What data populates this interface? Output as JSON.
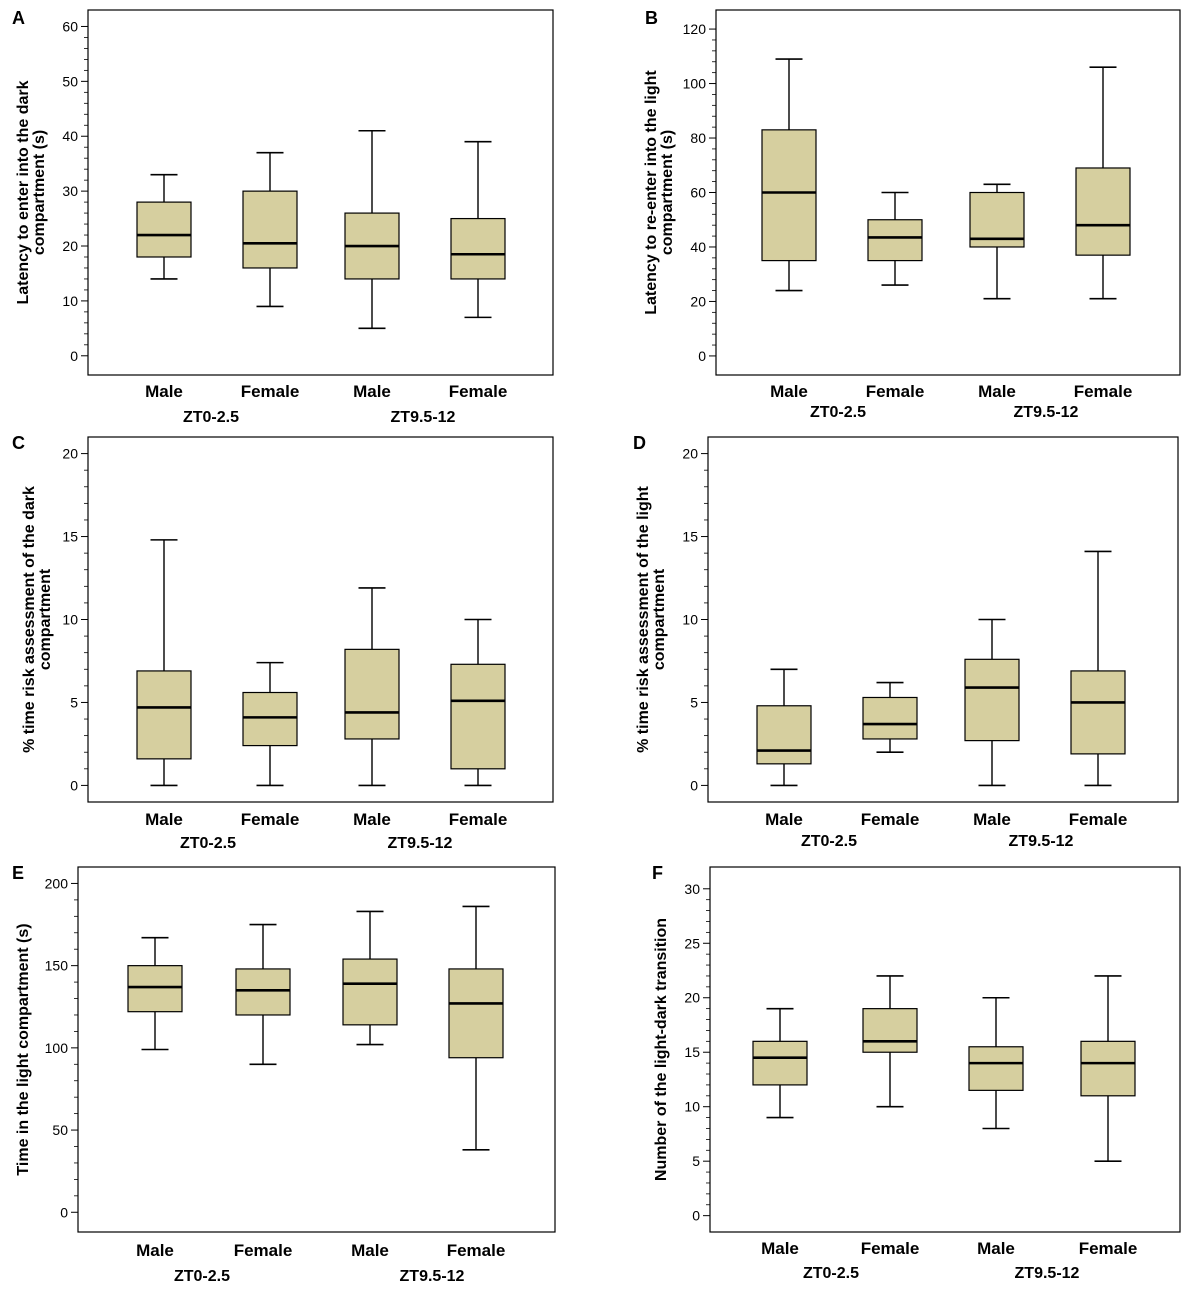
{
  "colors": {
    "box_fill": "#d6cf9f",
    "stroke": "#000000",
    "frame": "#000000",
    "background": "#ffffff"
  },
  "categories": [
    "Male",
    "Female",
    "Male",
    "Female"
  ],
  "groups": [
    "ZT0-2.5",
    "ZT9.5-12"
  ],
  "chart_data": [
    {
      "panel": "A",
      "type": "box",
      "ylabel_lines": [
        "Latency  to enter into the dark",
        "compartment (s)"
      ],
      "yticks": [
        0,
        10,
        20,
        30,
        40,
        50,
        60
      ],
      "ylim": [
        -3.5,
        63
      ],
      "categories": [
        "Male",
        "Female",
        "Male",
        "Female"
      ],
      "groups": [
        "ZT0-2.5",
        "ZT9.5-12"
      ],
      "boxes": [
        {
          "min": 14,
          "q1": 18,
          "median": 22,
          "q3": 28,
          "max": 33
        },
        {
          "min": 9,
          "q1": 16,
          "median": 20.5,
          "q3": 30,
          "max": 37
        },
        {
          "min": 5,
          "q1": 14,
          "median": 20,
          "q3": 26,
          "max": 41
        },
        {
          "min": 7,
          "q1": 14,
          "median": 18.5,
          "q3": 25,
          "max": 39
        }
      ]
    },
    {
      "panel": "B",
      "type": "box",
      "ylabel_lines": [
        "Latency  to re-enter into the light",
        "compartment (s)"
      ],
      "yticks": [
        0,
        20,
        40,
        60,
        80,
        100,
        120
      ],
      "ylim": [
        -7,
        127
      ],
      "categories": [
        "Male",
        "Female",
        "Male",
        "Female"
      ],
      "groups": [
        "ZT0-2.5",
        "ZT9.5-12"
      ],
      "boxes": [
        {
          "min": 24,
          "q1": 35,
          "median": 60,
          "q3": 83,
          "max": 109
        },
        {
          "min": 26,
          "q1": 35,
          "median": 43.5,
          "q3": 50,
          "max": 60
        },
        {
          "min": 21,
          "q1": 40,
          "median": 43,
          "q3": 60,
          "max": 63
        },
        {
          "min": 21,
          "q1": 37,
          "median": 48,
          "q3": 69,
          "max": 106
        }
      ]
    },
    {
      "panel": "C",
      "type": "box",
      "ylabel_lines": [
        "% time risk assessment of the dark",
        "compartment"
      ],
      "yticks": [
        0,
        5,
        10,
        15,
        20
      ],
      "ylim": [
        -1,
        21
      ],
      "categories": [
        "Male",
        "Female",
        "Male",
        "Female"
      ],
      "groups": [
        "ZT0-2.5",
        "ZT9.5-12"
      ],
      "boxes": [
        {
          "min": 0,
          "q1": 1.6,
          "median": 4.7,
          "q3": 6.9,
          "max": 14.8
        },
        {
          "min": 0,
          "q1": 2.4,
          "median": 4.1,
          "q3": 5.6,
          "max": 7.4
        },
        {
          "min": 0,
          "q1": 2.8,
          "median": 4.4,
          "q3": 8.2,
          "max": 11.9
        },
        {
          "min": 0,
          "q1": 1.0,
          "median": 5.1,
          "q3": 7.3,
          "max": 10.0
        }
      ]
    },
    {
      "panel": "D",
      "type": "box",
      "ylabel_lines": [
        "% time risk assessment of the light",
        "compartment"
      ],
      "yticks": [
        0,
        5,
        10,
        15,
        20
      ],
      "ylim": [
        -1,
        21
      ],
      "categories": [
        "Male",
        "Female",
        "Male",
        "Female"
      ],
      "groups": [
        "ZT0-2.5",
        "ZT9.5-12"
      ],
      "boxes": [
        {
          "min": 0,
          "q1": 1.3,
          "median": 2.1,
          "q3": 4.8,
          "max": 7.0
        },
        {
          "min": 2.0,
          "q1": 2.8,
          "median": 3.7,
          "q3": 5.3,
          "max": 6.2
        },
        {
          "min": 0,
          "q1": 2.7,
          "median": 5.9,
          "q3": 7.6,
          "max": 10.0
        },
        {
          "min": 0,
          "q1": 1.9,
          "median": 5.0,
          "q3": 6.9,
          "max": 14.1
        }
      ]
    },
    {
      "panel": "E",
      "type": "box",
      "ylabel_lines": [
        "Time in the light compartment (s)"
      ],
      "yticks": [
        0,
        50,
        100,
        150,
        200
      ],
      "ylim": [
        -12,
        210
      ],
      "categories": [
        "Male",
        "Female",
        "Male",
        "Female"
      ],
      "groups": [
        "ZT0-2.5",
        "ZT9.5-12"
      ],
      "boxes": [
        {
          "min": 99,
          "q1": 122,
          "median": 137,
          "q3": 150,
          "max": 167
        },
        {
          "min": 90,
          "q1": 120,
          "median": 135,
          "q3": 148,
          "max": 175
        },
        {
          "min": 102,
          "q1": 114,
          "median": 139,
          "q3": 154,
          "max": 183
        },
        {
          "min": 38,
          "q1": 94,
          "median": 127,
          "q3": 148,
          "max": 186
        }
      ]
    },
    {
      "panel": "F",
      "type": "box",
      "ylabel_lines": [
        "Number of the light-dark transition"
      ],
      "yticks": [
        0,
        5,
        10,
        15,
        20,
        25,
        30
      ],
      "ylim": [
        -1.5,
        32
      ],
      "categories": [
        "Male",
        "Female",
        "Male",
        "Female"
      ],
      "groups": [
        "ZT0-2.5",
        "ZT9.5-12"
      ],
      "boxes": [
        {
          "min": 9,
          "q1": 12,
          "median": 14.5,
          "q3": 16,
          "max": 19
        },
        {
          "min": 10,
          "q1": 15,
          "median": 16,
          "q3": 19,
          "max": 22
        },
        {
          "min": 8,
          "q1": 11.5,
          "median": 14,
          "q3": 15.5,
          "max": 20
        },
        {
          "min": 5,
          "q1": 11,
          "median": 14,
          "q3": 16,
          "max": 22
        }
      ]
    }
  ]
}
